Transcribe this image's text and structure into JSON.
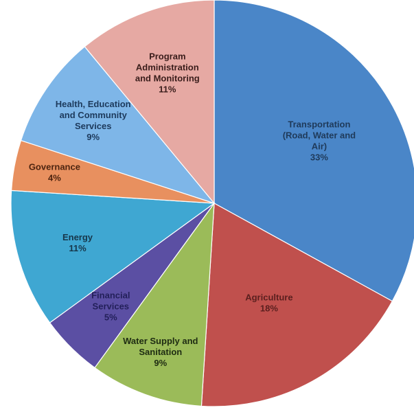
{
  "chart_data": {
    "type": "pie",
    "start_angle_deg": 0,
    "direction": "clockwise",
    "slices": [
      {
        "label_lines": [
          "Transportation",
          "(Road, Water and",
          "Air)"
        ],
        "value": 33,
        "value_label": "33%",
        "color": "#4a86c8",
        "label_color": "#1f3a5a"
      },
      {
        "label_lines": [
          "Agriculture"
        ],
        "value": 18,
        "value_label": "18%",
        "color": "#c0504d",
        "label_color": "#5a1f1e"
      },
      {
        "label_lines": [
          "Water Supply and",
          "Sanitation"
        ],
        "value": 9,
        "value_label": "9%",
        "color": "#9bbb59",
        "label_color": "#1e2b12"
      },
      {
        "label_lines": [
          "Financial",
          "Services"
        ],
        "value": 5,
        "value_label": "5%",
        "color": "#5b4fa3",
        "label_color": "#23205a"
      },
      {
        "label_lines": [
          "Energy"
        ],
        "value": 11,
        "value_label": "11%",
        "color": "#3fa7d2",
        "label_color": "#17364a"
      },
      {
        "label_lines": [
          "Governance"
        ],
        "value": 4,
        "value_label": "4%",
        "color": "#e8905f",
        "label_color": "#4d2410"
      },
      {
        "label_lines": [
          "Health, Education",
          "and Community",
          "Services"
        ],
        "value": 9,
        "value_label": "9%",
        "color": "#7eb6e8",
        "label_color": "#1d3a5c"
      },
      {
        "label_lines": [
          "Program",
          "Administration",
          "and Monitoring"
        ],
        "value": 11,
        "value_label": "11%",
        "color": "#e6a9a3",
        "label_color": "#3a1d1b"
      }
    ]
  }
}
